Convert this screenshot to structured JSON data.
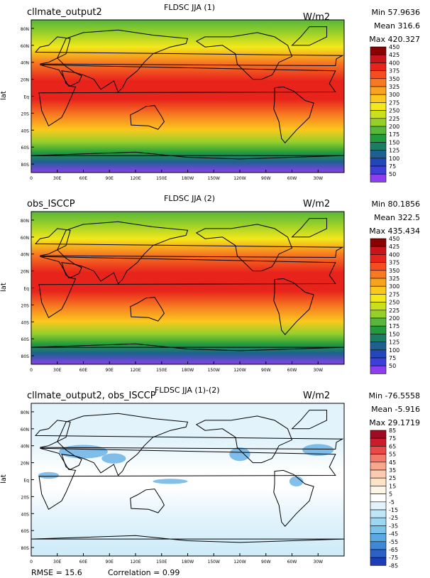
{
  "panels": [
    {
      "left_title": "cllmate_output2",
      "center_title": "FLDSC JJA (1)",
      "units": "W/m2",
      "stats": {
        "min": "Min 57.9636",
        "mean": "Mean 316.6",
        "max": "Max 420.327"
      },
      "ylabel": "lat",
      "colorbar": {
        "labels": [
          "450",
          "425",
          "400",
          "375",
          "350",
          "325",
          "300",
          "275",
          "250",
          "225",
          "200",
          "175",
          "150",
          "125",
          "100",
          "75",
          "50"
        ],
        "colors": [
          "#8b0000",
          "#c8141b",
          "#e8231c",
          "#f34d20",
          "#f77a22",
          "#f9a21f",
          "#fbc81d",
          "#f4e71a",
          "#c9e01c",
          "#95cf2a",
          "#58b63a",
          "#239a3c",
          "#1b7e63",
          "#1e6191",
          "#2347b8",
          "#3d3fd9",
          "#8b3ff0"
        ]
      },
      "lat_ticks": [
        "80N",
        "60N",
        "40N",
        "20N",
        "Eq",
        "20S",
        "40S",
        "60S",
        "80S"
      ],
      "lon_ticks": [
        "0",
        "30E",
        "60E",
        "90E",
        "120E",
        "150E",
        "180W",
        "150W",
        "120W",
        "90W",
        "60W",
        "30W"
      ]
    },
    {
      "left_title": "obs_ISCCP",
      "center_title": "FLDSC JJA (2)",
      "units": "W/m2",
      "stats": {
        "min": "Min 80.1856",
        "mean": "Mean 322.5",
        "max": "Max 435.434"
      },
      "ylabel": "lat",
      "colorbar": {
        "labels": [
          "450",
          "425",
          "400",
          "375",
          "350",
          "325",
          "300",
          "275",
          "250",
          "225",
          "200",
          "175",
          "150",
          "125",
          "100",
          "75",
          "50"
        ],
        "colors": [
          "#8b0000",
          "#c8141b",
          "#e8231c",
          "#f34d20",
          "#f77a22",
          "#f9a21f",
          "#fbc81d",
          "#f4e71a",
          "#c9e01c",
          "#95cf2a",
          "#58b63a",
          "#239a3c",
          "#1b7e63",
          "#1e6191",
          "#2347b8",
          "#3d3fd9",
          "#8b3ff0"
        ]
      },
      "lat_ticks": [
        "80N",
        "60N",
        "40N",
        "20N",
        "Eq",
        "20S",
        "40S",
        "60S",
        "80S"
      ],
      "lon_ticks": [
        "0",
        "30E",
        "60E",
        "90E",
        "120E",
        "150E",
        "180W",
        "150W",
        "120W",
        "90W",
        "60W",
        "30W"
      ]
    },
    {
      "left_title": "cllmate_output2, obs_ISCCP",
      "center_title": "FLDSC JJA (1)-(2)",
      "units": "W/m2",
      "stats": {
        "min": "Min -76.5558",
        "mean": "Mean -5.916",
        "max": "Max 29.1719"
      },
      "ylabel": "lat",
      "colorbar": {
        "labels": [
          "85",
          "75",
          "65",
          "55",
          "45",
          "35",
          "25",
          "15",
          "5",
          "-5",
          "-15",
          "-25",
          "-35",
          "-45",
          "-55",
          "-65",
          "-75",
          "-85"
        ],
        "colors": [
          "#9e0b23",
          "#cc1b2b",
          "#e84a4a",
          "#f47a6a",
          "#f8a78c",
          "#fbcbaf",
          "#fde3c8",
          "#fff5e6",
          "#ffffff",
          "#e2f3fb",
          "#bfe6f7",
          "#9dd7f2",
          "#7cc3ec",
          "#5aa9e3",
          "#3f88d7",
          "#2c62c8",
          "#1c3cb8"
        ]
      },
      "lat_ticks": [
        "80N",
        "60N",
        "40N",
        "20N",
        "Eq",
        "20S",
        "40S",
        "60S",
        "80S"
      ],
      "lon_ticks": [
        "0",
        "30E",
        "60E",
        "90E",
        "120E",
        "150E",
        "180W",
        "150W",
        "120W",
        "90W",
        "60W",
        "30W"
      ]
    }
  ],
  "footer": {
    "rmse": "RMSE = 15.6",
    "correlation": "Correlation = 0.99"
  },
  "chart_data": [
    {
      "type": "heatmap",
      "title": "FLDSC JJA (1)",
      "subtitle": "cllmate_output2",
      "units": "W/m2",
      "ylabel": "lat",
      "x_range": [
        0,
        360
      ],
      "y_range": [
        -90,
        90
      ],
      "min": 57.9636,
      "mean": 316.6,
      "max": 420.327,
      "levels": [
        50,
        75,
        100,
        125,
        150,
        175,
        200,
        225,
        250,
        275,
        300,
        325,
        350,
        375,
        400,
        425,
        450
      ]
    },
    {
      "type": "heatmap",
      "title": "FLDSC JJA (2)",
      "subtitle": "obs_ISCCP",
      "units": "W/m2",
      "ylabel": "lat",
      "x_range": [
        0,
        360
      ],
      "y_range": [
        -90,
        90
      ],
      "min": 80.1856,
      "mean": 322.5,
      "max": 435.434,
      "levels": [
        50,
        75,
        100,
        125,
        150,
        175,
        200,
        225,
        250,
        275,
        300,
        325,
        350,
        375,
        400,
        425,
        450
      ]
    },
    {
      "type": "heatmap",
      "title": "FLDSC JJA (1)-(2)",
      "subtitle": "cllmate_output2, obs_ISCCP",
      "units": "W/m2",
      "ylabel": "lat",
      "x_range": [
        0,
        360
      ],
      "y_range": [
        -90,
        90
      ],
      "min": -76.5558,
      "mean": -5.916,
      "max": 29.1719,
      "levels": [
        -85,
        -75,
        -65,
        -55,
        -45,
        -35,
        -25,
        -15,
        -5,
        5,
        15,
        25,
        35,
        45,
        55,
        65,
        75,
        85
      ],
      "rmse": 15.6,
      "correlation": 0.99
    }
  ]
}
